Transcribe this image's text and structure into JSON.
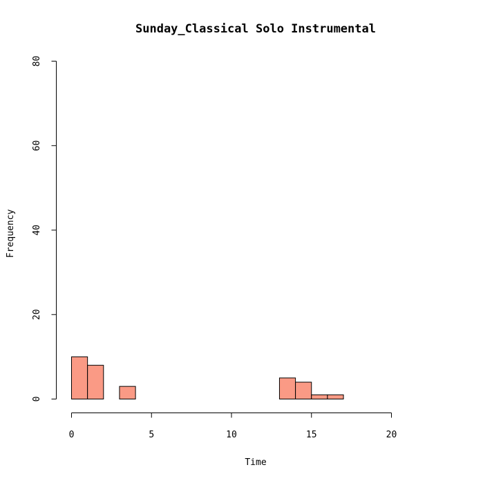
{
  "chart_data": {
    "type": "bar",
    "title": "Sunday_Classical Solo Instrumental",
    "xlabel": "Time",
    "ylabel": "Frequency",
    "xlim": [
      0,
      24
    ],
    "ylim": [
      0,
      80
    ],
    "x_ticks": [
      0,
      5,
      10,
      15,
      20
    ],
    "y_ticks": [
      0,
      20,
      40,
      60,
      80
    ],
    "bin_width": 1,
    "bins": [
      {
        "start": 0,
        "end": 1,
        "count": 10
      },
      {
        "start": 1,
        "end": 2,
        "count": 8
      },
      {
        "start": 2,
        "end": 3,
        "count": 0
      },
      {
        "start": 3,
        "end": 4,
        "count": 3
      },
      {
        "start": 4,
        "end": 5,
        "count": 0
      },
      {
        "start": 5,
        "end": 6,
        "count": 0
      },
      {
        "start": 6,
        "end": 7,
        "count": 0
      },
      {
        "start": 7,
        "end": 8,
        "count": 0
      },
      {
        "start": 8,
        "end": 9,
        "count": 0
      },
      {
        "start": 9,
        "end": 10,
        "count": 0
      },
      {
        "start": 10,
        "end": 11,
        "count": 0
      },
      {
        "start": 11,
        "end": 12,
        "count": 0
      },
      {
        "start": 12,
        "end": 13,
        "count": 0
      },
      {
        "start": 13,
        "end": 14,
        "count": 5
      },
      {
        "start": 14,
        "end": 15,
        "count": 4
      },
      {
        "start": 15,
        "end": 16,
        "count": 1
      },
      {
        "start": 16,
        "end": 17,
        "count": 1
      },
      {
        "start": 17,
        "end": 18,
        "count": 0
      },
      {
        "start": 18,
        "end": 19,
        "count": 0
      },
      {
        "start": 19,
        "end": 20,
        "count": 0
      },
      {
        "start": 20,
        "end": 21,
        "count": 0
      },
      {
        "start": 21,
        "end": 22,
        "count": 0
      },
      {
        "start": 22,
        "end": 23,
        "count": 0
      },
      {
        "start": 23,
        "end": 24,
        "count": 0
      }
    ],
    "bar_color": "#FA9A85",
    "grid": false,
    "legend": "none"
  }
}
